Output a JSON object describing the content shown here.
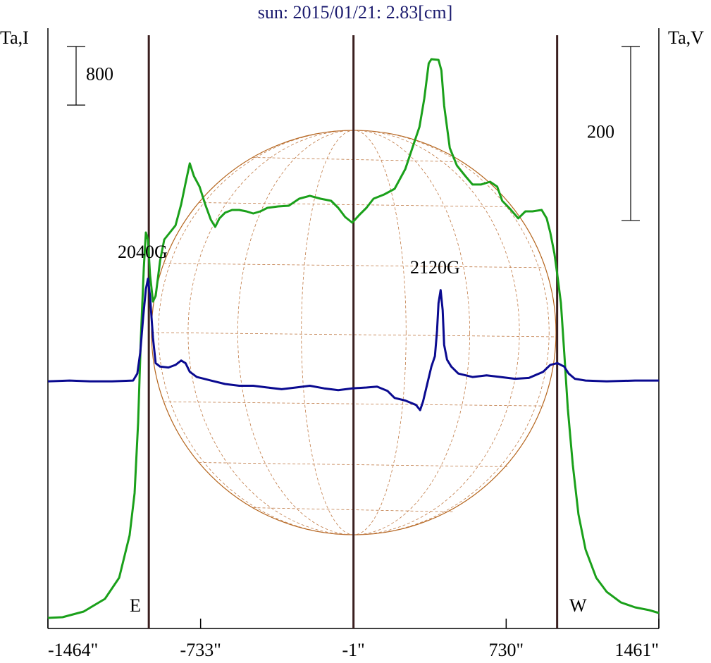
{
  "chart_data": {
    "type": "line",
    "title": "sun: 2015/01/21: 2.83[cm]",
    "xlim": [
      -1464,
      1461
    ],
    "xticks": [
      {
        "value": -1464,
        "label": "-1464\""
      },
      {
        "value": -733,
        "label": "-733\""
      },
      {
        "value": -1,
        "label": "-1\""
      },
      {
        "value": 730,
        "label": "730\""
      },
      {
        "value": 1461,
        "label": "1461\""
      }
    ],
    "ylim": [
      0,
      8200
    ],
    "y2lim": [
      -285,
      405
    ],
    "scale_bars": [
      {
        "axis": "y",
        "value": 800
      },
      {
        "axis": "y2",
        "value": 200
      }
    ],
    "vlines": [
      -981,
      -1,
      974
    ],
    "annotations": [
      "2040G",
      "2120G",
      "E",
      "W"
    ],
    "series": [
      {
        "name": "Ta,I",
        "axis": "y",
        "color": "#1aa01a",
        "x": [
          -1464,
          -1394,
          -1293,
          -1191,
          -1123,
          -1073,
          -1049,
          -1032,
          -1019,
          -1005,
          -995,
          -985,
          -975,
          -961,
          -948,
          -927,
          -907,
          -880,
          -853,
          -826,
          -805,
          -785,
          -765,
          -738,
          -711,
          -684,
          -663,
          -643,
          -616,
          -582,
          -548,
          -514,
          -481,
          -447,
          -413,
          -362,
          -311,
          -261,
          -210,
          -159,
          -108,
          -74,
          -41,
          -7,
          27,
          61,
          95,
          146,
          196,
          247,
          281,
          315,
          338,
          359,
          372,
          406,
          420,
          433,
          460,
          494,
          535,
          569,
          609,
          653,
          687,
          711,
          744,
          788,
          822,
          856,
          900,
          924,
          941,
          961,
          975,
          992,
          1008,
          1025,
          1049,
          1076,
          1110,
          1161,
          1211,
          1279,
          1347,
          1415,
          1461
        ],
        "values": [
          144,
          154,
          231,
          404,
          693,
          1271,
          1848,
          2811,
          3966,
          4928,
          5409,
          5313,
          4832,
          4466,
          4543,
          5024,
          5313,
          5409,
          5506,
          5794,
          6083,
          6353,
          6179,
          6035,
          5794,
          5583,
          5486,
          5602,
          5679,
          5717,
          5717,
          5698,
          5669,
          5698,
          5746,
          5765,
          5775,
          5871,
          5910,
          5871,
          5842,
          5746,
          5621,
          5544,
          5650,
          5746,
          5871,
          5929,
          6006,
          6276,
          6564,
          6853,
          7238,
          7719,
          7777,
          7767,
          7623,
          7142,
          6564,
          6324,
          6179,
          6064,
          6064,
          6102,
          6035,
          5842,
          5746,
          5602,
          5698,
          5698,
          5717,
          5602,
          5409,
          5121,
          4832,
          4447,
          3773,
          3003,
          2233,
          1559,
          1078,
          693,
          501,
          356,
          289,
          250,
          212
        ]
      },
      {
        "name": "Ta,V",
        "axis": "y2",
        "color": "#0a0a90",
        "x": [
          -1464,
          -1360,
          -1259,
          -1157,
          -1056,
          -1036,
          -1022,
          -1008,
          -995,
          -985,
          -975,
          -961,
          -948,
          -927,
          -887,
          -853,
          -826,
          -805,
          -785,
          -751,
          -717,
          -684,
          -616,
          -548,
          -481,
          -413,
          -345,
          -277,
          -210,
          -142,
          -74,
          -7,
          61,
          112,
          162,
          196,
          247,
          298,
          318,
          332,
          352,
          372,
          389,
          399,
          406,
          416,
          426,
          433,
          447,
          467,
          501,
          569,
          636,
          704,
          772,
          839,
          907,
          941,
          975,
          1008,
          1029,
          1059,
          1110,
          1211,
          1347,
          1461
        ],
        "values": [
          -1,
          0,
          -1,
          -1,
          0,
          8,
          32,
          73,
          105,
          117,
          97,
          49,
          20,
          16,
          15,
          18,
          23,
          20,
          10,
          4,
          2,
          0,
          -4,
          -6,
          -6,
          -8,
          -10,
          -8,
          -6,
          -9,
          -11,
          -9,
          -8,
          -7,
          -12,
          -20,
          -23,
          -28,
          -34,
          -24,
          -4,
          16,
          28,
          57,
          89,
          104,
          81,
          41,
          24,
          16,
          8,
          4,
          6,
          4,
          2,
          3,
          10,
          18,
          20,
          16,
          8,
          2,
          0,
          -1,
          0,
          0
        ]
      }
    ]
  }
}
